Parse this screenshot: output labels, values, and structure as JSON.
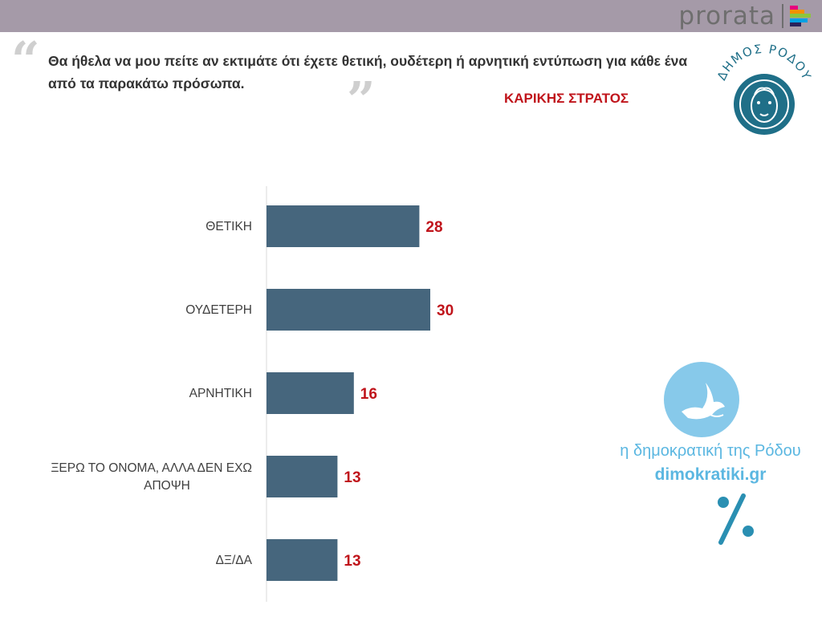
{
  "header": {
    "brand": "prorata",
    "brand_mark_colors": [
      "#e6007e",
      "#f29100",
      "#8cc63f",
      "#00a0e3",
      "#29235c"
    ]
  },
  "question": "Θα ήθελα να μου πείτε αν εκτιμάτε ότι έχετε θετική, ουδέτερη ή αρνητική εντύπωση για κάθε ένα από τα παρακάτω πρόσωπα.",
  "subject": "ΚΑΡΙΚΗΣ ΣΤΡΑΤΟΣ",
  "logo": {
    "text": "ΔΗΜΟΣ ΡΟΔΟΥ",
    "icon": "helios-head-icon",
    "color": "#1f6f88"
  },
  "watermark": {
    "line1": "η δημοκρατική της Ρόδου",
    "line2": "dimokratiki.gr",
    "icon": "dove-icon",
    "percent_icon": "percent-icon",
    "color": "#5bb7e1"
  },
  "chart_data": {
    "type": "bar",
    "orientation": "horizontal",
    "categories": [
      [
        "ΘΕΤΙΚΗ"
      ],
      [
        "ΟΥΔΕΤΕΡΗ"
      ],
      [
        "ΑΡΝΗΤΙΚΗ"
      ],
      [
        "ΞΕΡΩ ΤΟ ΟΝΟΜΑ, ΑΛΛΑ ΔΕΝ ΕΧΩ",
        "ΑΠΟΨΗ"
      ],
      [
        "ΔΞ/ΔΑ"
      ]
    ],
    "values": [
      28,
      30,
      16,
      13,
      13
    ],
    "bar_color": "#46667d",
    "label_color": "#c0141b",
    "title": "",
    "xlabel": "",
    "ylabel": "",
    "xlim": [
      0,
      100
    ],
    "grid": false,
    "legend": "none"
  }
}
